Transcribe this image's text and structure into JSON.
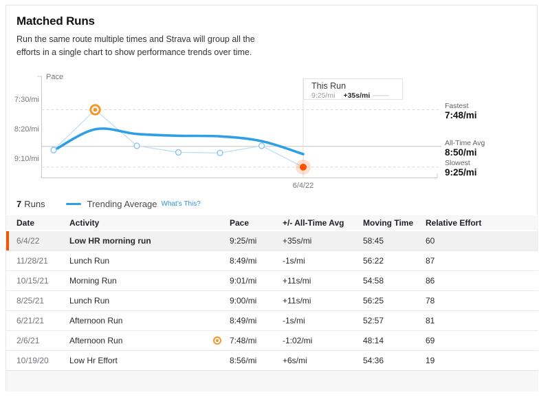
{
  "header": {
    "title": "Matched Runs",
    "description": "Run the same route multiple times and Strava will group all the efforts in a single chart to show performance trends over time."
  },
  "chart_data": {
    "type": "line",
    "ylabel": "Pace",
    "yticks": [
      "7:30/mi",
      "8:20/mi",
      "9:10/mi"
    ],
    "xtick": "6/4/22",
    "points": [
      {
        "date": "10/19/20",
        "pace": "8:56"
      },
      {
        "date": "2/6/21",
        "pace": "7:48",
        "marker": "fastest"
      },
      {
        "date": "6/21/21",
        "pace": "8:49"
      },
      {
        "date": "8/25/21",
        "pace": "9:00"
      },
      {
        "date": "10/15/21",
        "pace": "9:01"
      },
      {
        "date": "11/28/21",
        "pace": "8:49"
      },
      {
        "date": "6/4/22",
        "pace": "9:25",
        "marker": "this-run"
      }
    ],
    "trend": [
      "8:57",
      "8:21",
      "8:29",
      "8:32",
      "8:33",
      "8:41",
      "9:03"
    ],
    "reference_lines": [
      {
        "label": "Fastest",
        "value": "7:48/mi",
        "pace": "7:48",
        "style": "dashed"
      },
      {
        "label": "All-Time Avg",
        "value": "8:50/mi",
        "pace": "8:50",
        "style": "solid"
      },
      {
        "label": "Slowest",
        "value": "9:25/mi",
        "pace": "9:25",
        "style": "dashed"
      }
    ],
    "tooltip": {
      "title": "This Run",
      "pace": "9:25/mi",
      "diff": "+35s/mi"
    },
    "colors": {
      "trend": "#2d9fe6",
      "series": "#bedff5",
      "marker_stroke": "#85c6ee",
      "fastest": "#f7952d",
      "this_run": "#fc5200"
    }
  },
  "legend": {
    "count": "7",
    "count_label": "Runs",
    "trend": "Trending Average",
    "whats_this": "What's This?"
  },
  "table": {
    "columns": [
      "Date",
      "Activity",
      "Pace",
      "+/- All-Time Avg",
      "Moving Time",
      "Relative Effort"
    ],
    "rows": [
      {
        "date": "6/4/22",
        "activity": "Low HR morning run",
        "pace": "9:25/mi",
        "diff": "+35s/mi",
        "moving_time": "58:45",
        "effort": "60",
        "highlight": true
      },
      {
        "date": "11/28/21",
        "activity": "Lunch Run",
        "pace": "8:49/mi",
        "diff": "-1s/mi",
        "moving_time": "56:22",
        "effort": "87"
      },
      {
        "date": "10/15/21",
        "activity": "Morning Run",
        "pace": "9:01/mi",
        "diff": "+11s/mi",
        "moving_time": "54:58",
        "effort": "86"
      },
      {
        "date": "8/25/21",
        "activity": "Lunch Run",
        "pace": "9:00/mi",
        "diff": "+11s/mi",
        "moving_time": "56:25",
        "effort": "78"
      },
      {
        "date": "6/21/21",
        "activity": "Afternoon Run",
        "pace": "8:49/mi",
        "diff": "-1s/mi",
        "moving_time": "52:57",
        "effort": "81"
      },
      {
        "date": "2/6/21",
        "activity": "Afternoon Run",
        "pace": "7:48/mi",
        "diff": "-1:02/mi",
        "moving_time": "48:14",
        "effort": "69",
        "fastest_badge": true
      },
      {
        "date": "10/19/20",
        "activity": "Low Hr Effort",
        "pace": "8:56/mi",
        "diff": "+6s/mi",
        "moving_time": "54:36",
        "effort": "19"
      }
    ]
  }
}
